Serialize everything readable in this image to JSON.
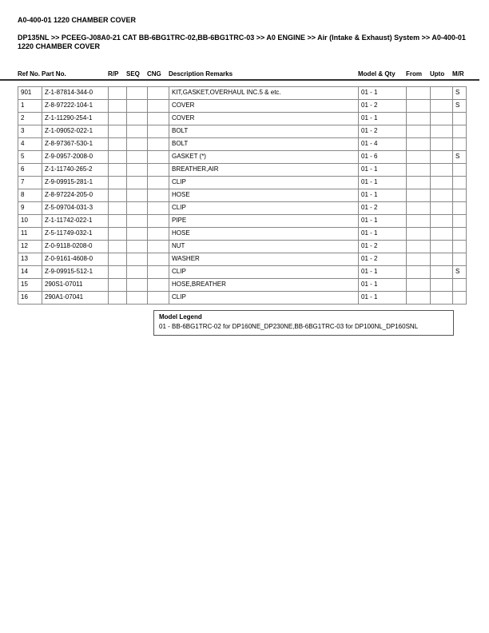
{
  "title": "A0-400-01 1220 CHAMBER COVER",
  "breadcrumb": "DP135NL >> PCEEG-J08A0-21 CAT BB-6BG1TRC-02,BB-6BG1TRC-03 >> A0 ENGINE >> Air (Intake & Exhaust) System >> A0-400-01 1220 CHAMBER COVER",
  "columns": [
    "Ref No.",
    "Part No.",
    "R/P",
    "SEQ",
    "CNG",
    "Description Remarks",
    "Model & Qty",
    "From",
    "Upto",
    "M/R"
  ],
  "rows": [
    [
      "901",
      "Z-1-87814-344-0",
      "",
      "",
      "",
      "KIT,GASKET,OVERHAUL INC.5 & etc.",
      "01 - 1",
      "",
      "",
      "S"
    ],
    [
      "1",
      "Z-8-97222-104-1",
      "",
      "",
      "",
      "COVER",
      "01 - 2",
      "",
      "",
      "S"
    ],
    [
      "2",
      "Z-1-11290-254-1",
      "",
      "",
      "",
      "COVER",
      "01 - 1",
      "",
      "",
      ""
    ],
    [
      "3",
      "Z-1-09052-022-1",
      "",
      "",
      "",
      "BOLT",
      "01 - 2",
      "",
      "",
      ""
    ],
    [
      "4",
      "Z-8-97367-530-1",
      "",
      "",
      "",
      "BOLT",
      "01 - 4",
      "",
      "",
      ""
    ],
    [
      "5",
      "Z-9-0957-2008-0",
      "",
      "",
      "",
      "GASKET (*)",
      "01 - 6",
      "",
      "",
      "S"
    ],
    [
      "6",
      "Z-1-11740-265-2",
      "",
      "",
      "",
      "BREATHER,AIR",
      "01 - 1",
      "",
      "",
      ""
    ],
    [
      "7",
      "Z-9-09915-281-1",
      "",
      "",
      "",
      "CLIP",
      "01 - 1",
      "",
      "",
      ""
    ],
    [
      "8",
      "Z-8-97224-205-0",
      "",
      "",
      "",
      "HOSE",
      "01 - 1",
      "",
      "",
      ""
    ],
    [
      "9",
      "Z-5-09704-031-3",
      "",
      "",
      "",
      "CLIP",
      "01 - 2",
      "",
      "",
      ""
    ],
    [
      "10",
      "Z-1-11742-022-1",
      "",
      "",
      "",
      "PIPE",
      "01 - 1",
      "",
      "",
      ""
    ],
    [
      "11",
      "Z-5-11749-032-1",
      "",
      "",
      "",
      "HOSE",
      "01 - 1",
      "",
      "",
      ""
    ],
    [
      "12",
      "Z-0-9118-0208-0",
      "",
      "",
      "",
      "NUT",
      "01 - 2",
      "",
      "",
      ""
    ],
    [
      "13",
      "Z-0-9161-4608-0",
      "",
      "",
      "",
      "WASHER",
      "01 - 2",
      "",
      "",
      ""
    ],
    [
      "14",
      "Z-9-09915-512-1",
      "",
      "",
      "",
      "CLIP",
      "01 - 1",
      "",
      "",
      "S"
    ],
    [
      "15",
      "290S1-07011",
      "",
      "",
      "",
      "HOSE,BREATHER",
      "01 - 1",
      "",
      "",
      ""
    ],
    [
      "16",
      "290A1-07041",
      "",
      "",
      "",
      "CLIP",
      "01 - 1",
      "",
      "",
      ""
    ]
  ],
  "legend": {
    "title": "Model Legend",
    "text": "01 - BB-6BG1TRC-02 for DP160NE_DP230NE,BB-6BG1TRC-03 for DP100NL_DP160SNL"
  }
}
